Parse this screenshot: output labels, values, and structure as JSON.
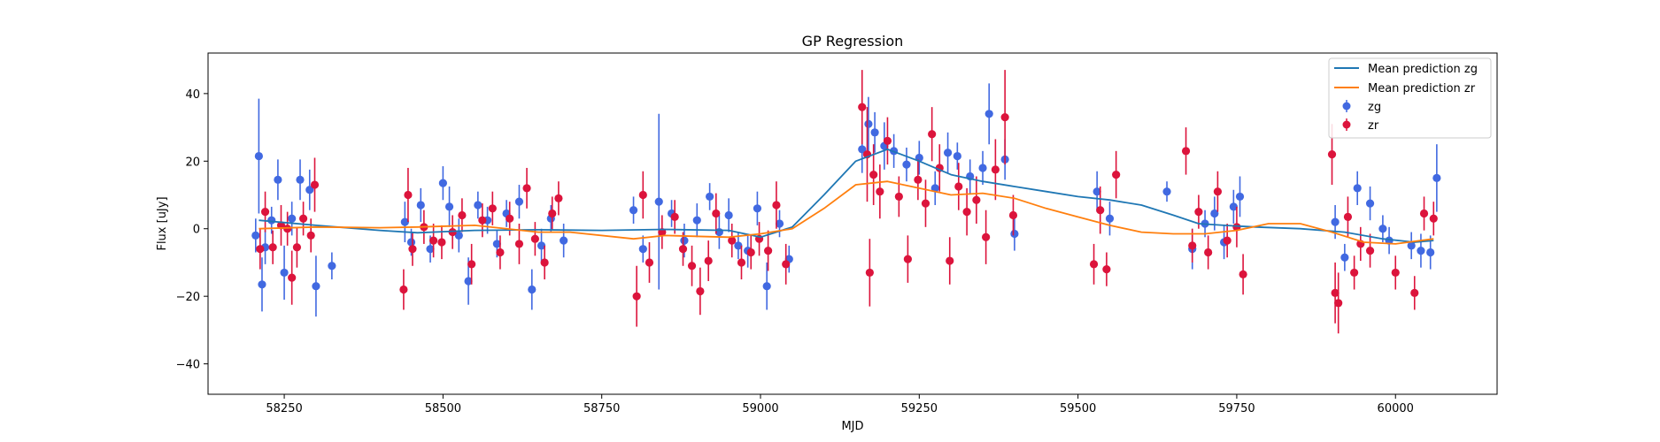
{
  "chart_data": {
    "type": "scatter",
    "title": "GP Regression",
    "xlabel": "MJD",
    "ylabel": "Flux [uJy]",
    "xlim": [
      58130,
      60160
    ],
    "ylim": [
      -49,
      52
    ],
    "x_ticks": [
      58250,
      58500,
      58750,
      59000,
      59250,
      59500,
      59750,
      60000
    ],
    "y_ticks": [
      -40,
      -20,
      0,
      20,
      40
    ],
    "grid": false,
    "legend_position": "top-right",
    "series": [
      {
        "name": "Mean prediction zg",
        "kind": "line",
        "color": "#1f77b4",
        "x": [
          58210,
          58300,
          58400,
          58460,
          58550,
          58650,
          58750,
          58850,
          58950,
          59000,
          59050,
          59100,
          59150,
          59200,
          59250,
          59300,
          59350,
          59400,
          59450,
          59500,
          59550,
          59600,
          59650,
          59690,
          59730,
          59780,
          59850,
          59920,
          59980,
          60030,
          60060
        ],
        "y": [
          2.5,
          1.0,
          -0.5,
          -1.2,
          -0.5,
          -0.3,
          -0.5,
          -0.2,
          -0.5,
          -2.5,
          0.5,
          10.0,
          20.0,
          23.5,
          20.0,
          16.0,
          14.0,
          12.5,
          11.0,
          9.5,
          8.5,
          7.0,
          4.0,
          1.5,
          1.0,
          0.5,
          0.0,
          -1.0,
          -3.0,
          -4.0,
          -3.5
        ]
      },
      {
        "name": "Mean prediction zr",
        "kind": "line",
        "color": "#ff7f0e",
        "x": [
          58210,
          58300,
          58400,
          58460,
          58550,
          58650,
          58700,
          58800,
          58850,
          58950,
          59000,
          59050,
          59100,
          59150,
          59200,
          59250,
          59300,
          59350,
          59400,
          59450,
          59500,
          59550,
          59600,
          59650,
          59700,
          59750,
          59800,
          59850,
          59900,
          59950,
          60000,
          60060
        ],
        "y": [
          0.0,
          0.5,
          0.3,
          0.5,
          1.0,
          -1.0,
          -1.0,
          -3.0,
          -2.0,
          -2.5,
          -1.5,
          0.0,
          6.0,
          13.0,
          14.0,
          12.0,
          10.0,
          10.5,
          9.0,
          6.0,
          3.5,
          1.0,
          -1.0,
          -1.5,
          -1.5,
          -0.5,
          1.5,
          1.5,
          -1.0,
          -4.0,
          -4.5,
          -3.0
        ]
      },
      {
        "name": "zg",
        "kind": "errorbar",
        "color": "#4169e1",
        "x": [
          58205,
          58210,
          58215,
          58220,
          58230,
          58240,
          58250,
          58262,
          58275,
          58290,
          58300,
          58325,
          58440,
          58450,
          58465,
          58480,
          58500,
          58510,
          58525,
          58540,
          58555,
          58570,
          58585,
          58600,
          58620,
          58640,
          58655,
          58670,
          58690,
          58800,
          58815,
          58840,
          58860,
          58880,
          58900,
          58920,
          58935,
          58950,
          58965,
          58980,
          58995,
          59010,
          59030,
          59045,
          59160,
          59170,
          59180,
          59195,
          59210,
          59230,
          59250,
          59275,
          59295,
          59310,
          59330,
          59350,
          59360,
          59385,
          59400,
          59530,
          59550,
          59640,
          59680,
          59700,
          59715,
          59730,
          59745,
          59755,
          59905,
          59920,
          59940,
          59960,
          59980,
          59990,
          60025,
          60040,
          60055,
          60065
        ],
        "y": [
          -2.0,
          21.5,
          -16.5,
          -5.5,
          2.5,
          14.5,
          -13.0,
          3.0,
          14.5,
          11.5,
          -17.0,
          -11.0,
          2.0,
          -4.0,
          7.0,
          -6.0,
          13.5,
          6.5,
          -2.0,
          -15.5,
          7.0,
          2.5,
          -4.5,
          4.5,
          8.0,
          -18.0,
          -5.0,
          3.0,
          -3.5,
          5.5,
          -6.0,
          8.0,
          4.5,
          -3.5,
          2.5,
          9.5,
          -1.0,
          4.0,
          -5.0,
          -6.5,
          6.0,
          -17.0,
          1.5,
          -9.0,
          23.5,
          31.0,
          28.5,
          24.5,
          23.0,
          19.0,
          21.0,
          12.0,
          22.5,
          21.5,
          15.5,
          18.0,
          34.0,
          20.5,
          -1.5,
          11.0,
          3.0,
          11.0,
          -6.0,
          1.5,
          4.5,
          -4.0,
          6.5,
          9.5,
          2.0,
          -8.5,
          12.0,
          7.5,
          0.0,
          -3.5,
          -5.0,
          -6.5,
          -7.0,
          15.0
        ],
        "err": [
          5,
          17,
          8,
          5,
          4,
          6,
          8,
          5,
          6,
          6,
          9,
          4,
          6,
          4,
          5,
          4,
          5,
          6,
          5,
          7,
          4,
          4,
          4,
          4,
          5,
          6,
          5,
          4,
          5,
          4,
          4,
          26,
          4,
          5,
          5,
          4,
          5,
          5,
          4,
          5,
          5,
          7,
          4,
          4,
          7,
          8,
          6,
          7,
          5,
          5,
          5,
          5,
          6,
          4,
          5,
          5,
          9,
          6,
          5,
          6,
          5,
          3,
          6,
          4,
          5,
          5,
          5,
          6,
          5,
          4,
          5,
          5,
          4,
          4,
          4,
          5,
          5,
          10
        ]
      },
      {
        "name": "zr",
        "kind": "errorbar",
        "color": "#dc143c",
        "x": [
          58212,
          58220,
          58232,
          58245,
          58255,
          58262,
          58270,
          58280,
          58292,
          58298,
          58438,
          58445,
          58452,
          58470,
          58485,
          58498,
          58515,
          58530,
          58545,
          58562,
          58578,
          58590,
          58605,
          58620,
          58632,
          58645,
          58660,
          58672,
          58682,
          58805,
          58815,
          58825,
          58845,
          58865,
          58878,
          58892,
          58905,
          58918,
          58930,
          58955,
          58970,
          58985,
          58998,
          59012,
          59025,
          59040,
          59160,
          59168,
          59172,
          59178,
          59188,
          59200,
          59218,
          59232,
          59248,
          59260,
          59270,
          59282,
          59298,
          59312,
          59325,
          59340,
          59355,
          59370,
          59385,
          59398,
          59525,
          59535,
          59545,
          59560,
          59670,
          59680,
          59690,
          59705,
          59720,
          59735,
          59750,
          59760,
          59900,
          59905,
          59910,
          59925,
          59935,
          59945,
          59960,
          60000,
          60030,
          60045,
          60060
        ],
        "y": [
          -6.0,
          5.0,
          -5.5,
          1.0,
          0.0,
          -14.5,
          -5.5,
          3.0,
          -2.0,
          13.0,
          -18.0,
          10.0,
          -6.0,
          0.5,
          -3.5,
          -4.0,
          -1.0,
          4.0,
          -10.5,
          2.5,
          6.0,
          -7.0,
          3.0,
          -4.5,
          12.0,
          -3.0,
          -10.0,
          4.5,
          9.0,
          -20.0,
          10.0,
          -10.0,
          -1.0,
          3.5,
          -6.0,
          -11.0,
          -18.5,
          -9.5,
          4.5,
          -3.5,
          -10.0,
          -7.0,
          -3.0,
          -6.5,
          7.0,
          -10.5,
          36.0,
          22.0,
          -13.0,
          16.0,
          11.0,
          26.0,
          9.5,
          -9.0,
          14.5,
          7.5,
          28.0,
          18.0,
          -9.5,
          12.5,
          5.0,
          8.5,
          -2.5,
          17.5,
          33.0,
          4.0,
          -10.5,
          5.5,
          -12.0,
          16.0,
          23.0,
          -5.0,
          5.0,
          -7.0,
          11.0,
          -3.5,
          0.5,
          -13.5,
          22.0,
          -19.0,
          -22.0,
          3.5,
          -13.0,
          -4.5,
          -6.5,
          -13.0,
          -19.0,
          4.5,
          3.0
        ],
        "err": [
          6,
          6,
          5,
          6,
          5,
          8,
          6,
          5,
          5,
          8,
          6,
          8,
          5,
          5,
          5,
          5,
          5,
          5,
          6,
          5,
          5,
          5,
          5,
          6,
          6,
          5,
          5,
          5,
          5,
          9,
          7,
          6,
          5,
          5,
          5,
          6,
          7,
          6,
          6,
          5,
          5,
          5,
          5,
          6,
          7,
          6,
          11,
          14,
          10,
          9,
          8,
          7,
          6,
          7,
          6,
          7,
          8,
          7,
          7,
          7,
          7,
          7,
          8,
          9,
          14,
          6,
          6,
          7,
          5,
          7,
          7,
          5,
          5,
          5,
          6,
          5,
          6,
          6,
          9,
          9,
          9,
          6,
          5,
          5,
          5,
          5,
          5,
          5,
          5
        ]
      }
    ]
  }
}
